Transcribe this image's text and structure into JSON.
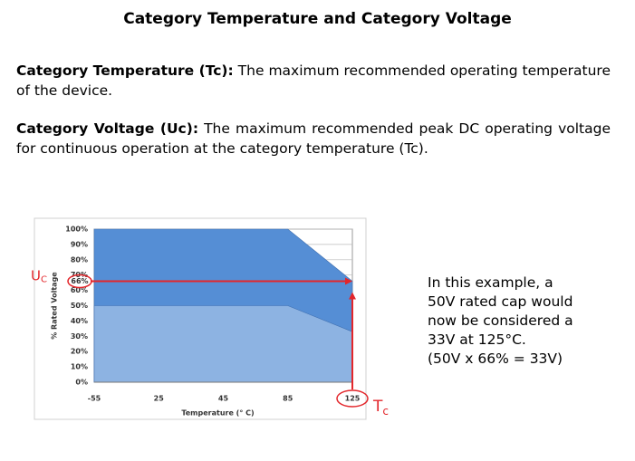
{
  "title": "Category Temperature and Category Voltage",
  "definitions": [
    {
      "term": "Category Temperature (Tc):",
      "text": "The maximum recommended operating temperature of the device."
    },
    {
      "term": "Category Voltage (Uc):",
      "text": "The maximum recommended peak DC operating voltage for continuous operation at the category temperature (Tc)."
    }
  ],
  "note": [
    "In this example, a",
    "50V rated cap would",
    "now be considered a",
    "33V at 125°C.",
    "(50V x 66% = 33V)"
  ],
  "chart_data": {
    "type": "area",
    "categories": [
      "-55",
      "25",
      "45",
      "85",
      "125"
    ],
    "series": [
      {
        "color": "#558ed5",
        "values": [
          100,
          100,
          100,
          100,
          66
        ]
      },
      {
        "color": "#8db3e2",
        "values": [
          50,
          50,
          50,
          50,
          33
        ]
      }
    ],
    "ylim": [
      0,
      100
    ],
    "yticks": [
      {
        "value": 0,
        "label": "0%"
      },
      {
        "value": 10,
        "label": "10%"
      },
      {
        "value": 20,
        "label": "20%"
      },
      {
        "value": 30,
        "label": "30%"
      },
      {
        "value": 40,
        "label": "40%"
      },
      {
        "value": 50,
        "label": "50%"
      },
      {
        "value": 60,
        "label": "60%"
      },
      {
        "value": 70,
        "label": "70%"
      },
      {
        "value": 80,
        "label": "80%"
      },
      {
        "value": 90,
        "label": "90%"
      },
      {
        "value": 100,
        "label": "100%"
      }
    ],
    "ylabel": "% Rated Voltage",
    "xlabel": "Temperature (° C)",
    "grid": true,
    "annotation_color": "#e3262b",
    "annotations": {
      "voltage": {
        "symbol": "U",
        "subscript": "C",
        "value": 66,
        "label": "66%"
      },
      "temperature": {
        "symbol": "T",
        "subscript": "c"
      }
    }
  }
}
